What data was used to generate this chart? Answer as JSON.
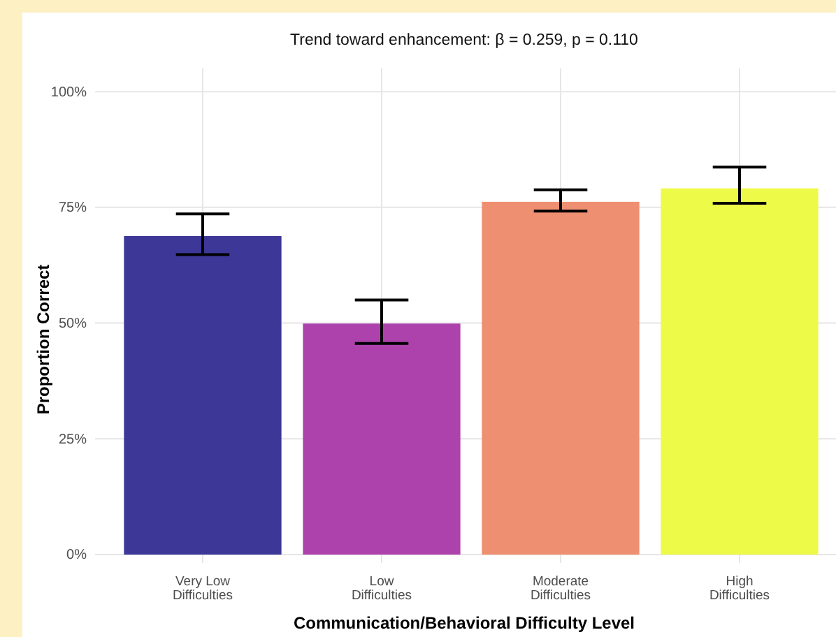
{
  "chart_data": {
    "type": "bar",
    "title": "Trend toward enhancement: β = 0.259, p = 0.110",
    "xlabel": "Communication/Behavioral Difficulty Level",
    "ylabel": "Proportion Correct",
    "categories": [
      "Very Low\nDifficulties",
      "Low\nDifficulties",
      "Moderate\nDifficulties",
      "High\nDifficulties"
    ],
    "values": [
      0.688,
      0.499,
      0.762,
      0.791
    ],
    "colors": [
      "#3d3798",
      "#ad42ad",
      "#ef8f71",
      "#eefa48"
    ],
    "errors": [
      [
        0.648,
        0.736
      ],
      [
        0.456,
        0.55
      ],
      [
        0.742,
        0.788
      ],
      [
        0.759,
        0.837
      ]
    ],
    "ylim": [
      0,
      1.05
    ],
    "yticks": [
      {
        "value": 0,
        "label": "0%"
      },
      {
        "value": 0.25,
        "label": "25%"
      },
      {
        "value": 0.5,
        "label": "50%"
      },
      {
        "value": 0.75,
        "label": "75%"
      },
      {
        "value": 1,
        "label": "100%"
      }
    ],
    "grid": true
  }
}
